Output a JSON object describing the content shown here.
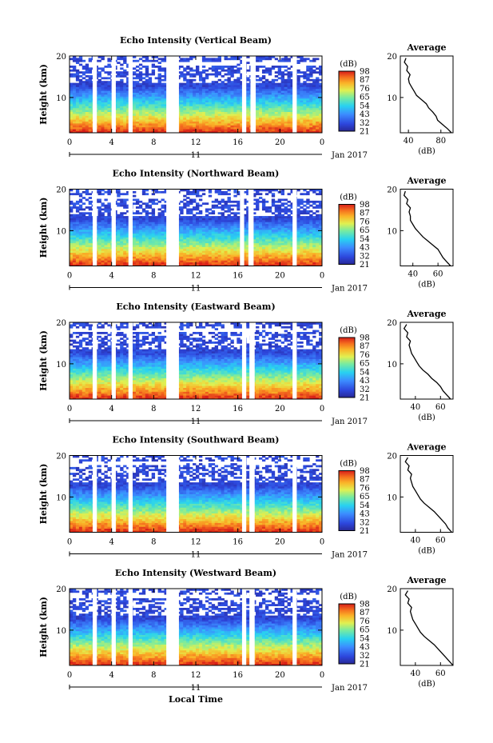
{
  "chart_data": [
    {
      "type": "heatmap",
      "title": "Echo Intensity (Vertical Beam)",
      "ylabel": "Height (km)",
      "ylim": [
        1.5,
        20
      ],
      "xlim": [
        0,
        24
      ],
      "x_ticks": [
        "0",
        "4",
        "8",
        "12",
        "16",
        "20",
        "0"
      ],
      "y_ticks": [
        "20",
        "10"
      ],
      "date_label": "11",
      "month_year": "Jan 2017",
      "colorbar": {
        "label": "(dB)",
        "ticks": [
          "98",
          "87",
          "76",
          "65",
          "54",
          "43",
          "32",
          "21"
        ],
        "range": [
          21,
          98
        ]
      },
      "data_gaps_hours": [
        [
          2.2,
          2.6
        ],
        [
          4.0,
          4.4
        ],
        [
          5.6,
          6.0
        ],
        [
          9.2,
          10.4
        ],
        [
          16.4,
          16.8
        ],
        [
          17.2,
          17.7
        ],
        [
          21.2,
          21.6
        ]
      ],
      "profile": {
        "title": "Average",
        "xlabel": "(dB)",
        "x_ticks": [
          "40",
          "80"
        ],
        "y_ticks": [
          "20",
          "10"
        ],
        "xlim": [
          30,
          95
        ],
        "heights_km": [
          1.5,
          2.5,
          3.5,
          4.5,
          5.5,
          6.5,
          7.5,
          8.5,
          9.5,
          10.5,
          11.5,
          12.5,
          13.5,
          14.5,
          15.5,
          16.5,
          17.5,
          18.5,
          19.5
        ],
        "values_db": [
          93,
          88,
          82,
          76,
          74,
          70,
          65,
          62,
          56,
          50,
          47,
          44,
          41,
          40,
          42,
          38,
          39,
          35,
          37
        ]
      }
    },
    {
      "type": "heatmap",
      "title": "Echo Intensity (Northward Beam)",
      "ylabel": "Height (km)",
      "ylim": [
        1.5,
        20
      ],
      "xlim": [
        0,
        24
      ],
      "x_ticks": [
        "0",
        "4",
        "8",
        "12",
        "16",
        "20",
        "0"
      ],
      "y_ticks": [
        "20",
        "10"
      ],
      "date_label": "11",
      "month_year": "Jan 2017",
      "colorbar": {
        "label": "(dB)",
        "ticks": [
          "98",
          "87",
          "76",
          "65",
          "54",
          "43",
          "32",
          "21"
        ],
        "range": [
          21,
          98
        ]
      },
      "data_gaps_hours": [
        [
          2.2,
          2.6
        ],
        [
          4.0,
          4.4
        ],
        [
          5.6,
          6.0
        ],
        [
          9.2,
          10.4
        ],
        [
          16.2,
          16.6
        ],
        [
          17.0,
          17.5
        ],
        [
          21.2,
          21.6
        ]
      ],
      "profile": {
        "title": "Average",
        "xlabel": "(dB)",
        "x_ticks": [
          "40",
          "60"
        ],
        "y_ticks": [
          "20",
          "10"
        ],
        "xlim": [
          30,
          72
        ],
        "heights_km": [
          1.5,
          2.5,
          3.5,
          4.5,
          5.5,
          6.5,
          7.5,
          8.5,
          9.5,
          10.5,
          11.5,
          12.5,
          13.5,
          14.5,
          15.5,
          16.5,
          17.5,
          18.5,
          19.5
        ],
        "values_db": [
          70,
          67,
          64,
          62,
          60,
          56,
          52,
          48,
          45,
          42,
          40,
          38,
          38,
          37,
          38,
          35,
          36,
          33,
          34
        ]
      }
    },
    {
      "type": "heatmap",
      "title": "Echo Intensity (Eastward Beam)",
      "ylabel": "Height (km)",
      "ylim": [
        1.5,
        20
      ],
      "xlim": [
        0,
        24
      ],
      "x_ticks": [
        "0",
        "4",
        "8",
        "12",
        "16",
        "20",
        "0"
      ],
      "y_ticks": [
        "20",
        "10"
      ],
      "date_label": "11",
      "month_year": "Jan 2017",
      "colorbar": {
        "label": "(dB)",
        "ticks": [
          "98",
          "87",
          "76",
          "65",
          "54",
          "43",
          "32",
          "21"
        ],
        "range": [
          21,
          98
        ]
      },
      "data_gaps_hours": [
        [
          2.2,
          2.6
        ],
        [
          4.0,
          4.4
        ],
        [
          5.6,
          6.0
        ],
        [
          9.2,
          10.4
        ],
        [
          16.4,
          16.8
        ],
        [
          17.1,
          17.6
        ],
        [
          21.2,
          21.6
        ]
      ],
      "profile": {
        "title": "Average",
        "xlabel": "(dB)",
        "x_ticks": [
          "40",
          "60"
        ],
        "y_ticks": [
          "20",
          "10"
        ],
        "xlim": [
          28,
          70
        ],
        "heights_km": [
          1.5,
          2.5,
          3.5,
          4.5,
          5.5,
          6.5,
          7.5,
          8.5,
          9.5,
          10.5,
          11.5,
          12.5,
          13.5,
          14.5,
          15.5,
          16.5,
          17.5,
          18.5,
          19.5
        ],
        "values_db": [
          68,
          65,
          62,
          60,
          57,
          53,
          50,
          46,
          43,
          41,
          39,
          37,
          36,
          35,
          36,
          33,
          34,
          31,
          33
        ]
      }
    },
    {
      "type": "heatmap",
      "title": "Echo Intensity (Southward Beam)",
      "ylabel": "Height (km)",
      "ylim": [
        1.5,
        20
      ],
      "xlim": [
        0,
        24
      ],
      "x_ticks": [
        "0",
        "4",
        "8",
        "12",
        "16",
        "20",
        "0"
      ],
      "y_ticks": [
        "20",
        "10"
      ],
      "date_label": "11",
      "month_year": "Jan 2017",
      "colorbar": {
        "label": "(dB)",
        "ticks": [
          "98",
          "87",
          "76",
          "65",
          "54",
          "43",
          "32",
          "21"
        ],
        "range": [
          21,
          98
        ]
      },
      "data_gaps_hours": [
        [
          2.2,
          2.6
        ],
        [
          4.0,
          4.4
        ],
        [
          5.6,
          6.0
        ],
        [
          9.2,
          10.4
        ],
        [
          16.4,
          16.8
        ],
        [
          17.1,
          17.6
        ],
        [
          21.2,
          21.6
        ]
      ],
      "profile": {
        "title": "Average",
        "xlabel": "(dB)",
        "x_ticks": [
          "40",
          "60"
        ],
        "y_ticks": [
          "20",
          "10"
        ],
        "xlim": [
          28,
          70
        ],
        "heights_km": [
          1.5,
          2.5,
          3.5,
          4.5,
          5.5,
          6.5,
          7.5,
          8.5,
          9.5,
          10.5,
          11.5,
          12.5,
          13.5,
          14.5,
          15.5,
          16.5,
          17.5,
          18.5,
          19.5
        ],
        "values_db": [
          69,
          66,
          64,
          61,
          58,
          55,
          51,
          47,
          44,
          42,
          40,
          38,
          37,
          36,
          37,
          34,
          35,
          32,
          34
        ]
      }
    },
    {
      "type": "heatmap",
      "title": "Echo Intensity (Westward Beam)",
      "ylabel": "Height (km)",
      "ylim": [
        1.5,
        20
      ],
      "xlim": [
        0,
        24
      ],
      "x_ticks": [
        "0",
        "4",
        "8",
        "12",
        "16",
        "20",
        "0"
      ],
      "y_ticks": [
        "20",
        "10"
      ],
      "date_label": "11",
      "month_year": "Jan 2017",
      "xlabel": "Local Time",
      "colorbar": {
        "label": "(dB)",
        "ticks": [
          "98",
          "87",
          "76",
          "65",
          "54",
          "43",
          "32",
          "21"
        ],
        "range": [
          21,
          98
        ]
      },
      "data_gaps_hours": [
        [
          2.2,
          2.6
        ],
        [
          4.0,
          4.4
        ],
        [
          5.6,
          6.0
        ],
        [
          9.2,
          10.4
        ],
        [
          16.4,
          16.8
        ],
        [
          17.1,
          17.6
        ],
        [
          21.2,
          21.6
        ]
      ],
      "profile": {
        "title": "Average",
        "xlabel": "(dB)",
        "x_ticks": [
          "40",
          "60"
        ],
        "y_ticks": [
          "20",
          "10"
        ],
        "xlim": [
          28,
          70
        ],
        "heights_km": [
          1.5,
          2.5,
          3.5,
          4.5,
          5.5,
          6.5,
          7.5,
          8.5,
          9.5,
          10.5,
          11.5,
          12.5,
          13.5,
          14.5,
          15.5,
          16.5,
          17.5,
          18.5,
          19.5
        ],
        "values_db": [
          70,
          67,
          64,
          61,
          58,
          55,
          51,
          47,
          44,
          42,
          40,
          38,
          37,
          36,
          37,
          34,
          35,
          32,
          34
        ]
      }
    }
  ]
}
